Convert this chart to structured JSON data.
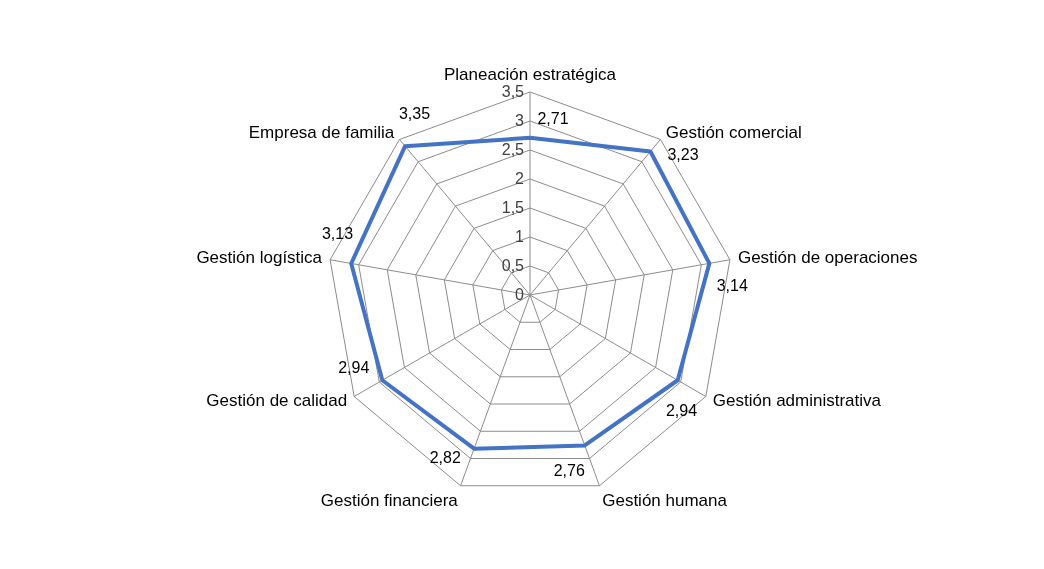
{
  "chart_data": {
    "type": "radar",
    "categories": [
      "Planeación estratégica",
      "Gestión comercial",
      "Gestión de operaciones",
      "Gestión administrativa",
      "Gestión humana",
      "Gestión financiera",
      "Gestión de calidad",
      "Gestión logística",
      "Empresa de familia"
    ],
    "series": [
      {
        "color": "#4472c4",
        "values": [
          2.71,
          3.23,
          3.14,
          2.94,
          2.76,
          2.82,
          2.94,
          3.13,
          3.35
        ],
        "value_labels": [
          "2,71",
          "3,23",
          "3,14",
          "2,94",
          "2,76",
          "2,82",
          "2,94",
          "3,13",
          "3,35"
        ]
      }
    ],
    "ylim": [
      0,
      3.5
    ],
    "yticks": [
      0,
      {
        "value": 0.5,
        "label": "0,5"
      },
      1,
      {
        "value": 1.5,
        "label": "1,5"
      },
      2,
      {
        "value": 2.5,
        "label": "2,5"
      },
      3,
      {
        "value": 3.5,
        "label": "3,5"
      }
    ],
    "grid": true
  }
}
